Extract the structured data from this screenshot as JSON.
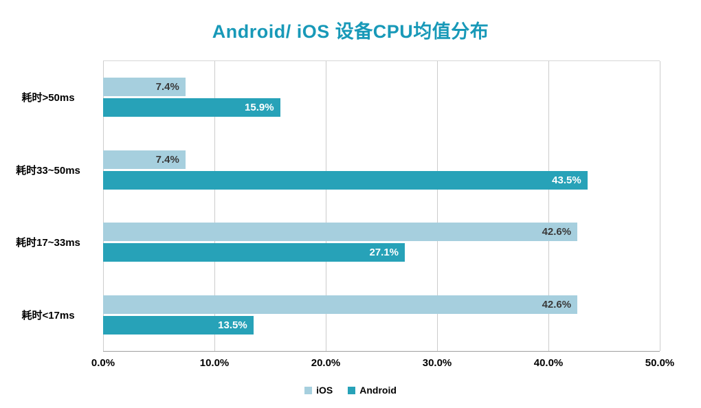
{
  "chart_data": {
    "type": "bar",
    "orientation": "horizontal",
    "title": "Android/ iOS 设备CPU均值分布",
    "title_color": "#1899b8",
    "categories": [
      "耗时>50ms",
      "耗时33~50ms",
      "耗时17~33ms",
      "耗时<17ms"
    ],
    "series": [
      {
        "name": "iOS",
        "color": "#a6cfde",
        "label_color": "#3a3a3a",
        "values": [
          7.4,
          7.4,
          42.6,
          42.6
        ]
      },
      {
        "name": "Android",
        "color": "#27a2b8",
        "label_color": "#ffffff",
        "values": [
          15.9,
          43.5,
          27.1,
          13.5
        ]
      }
    ],
    "x_ticks": [
      "0.0%",
      "10.0%",
      "20.0%",
      "30.0%",
      "40.0%",
      "50.0%"
    ],
    "xlim": [
      0,
      50
    ],
    "grid": true,
    "legend_position": "bottom"
  }
}
